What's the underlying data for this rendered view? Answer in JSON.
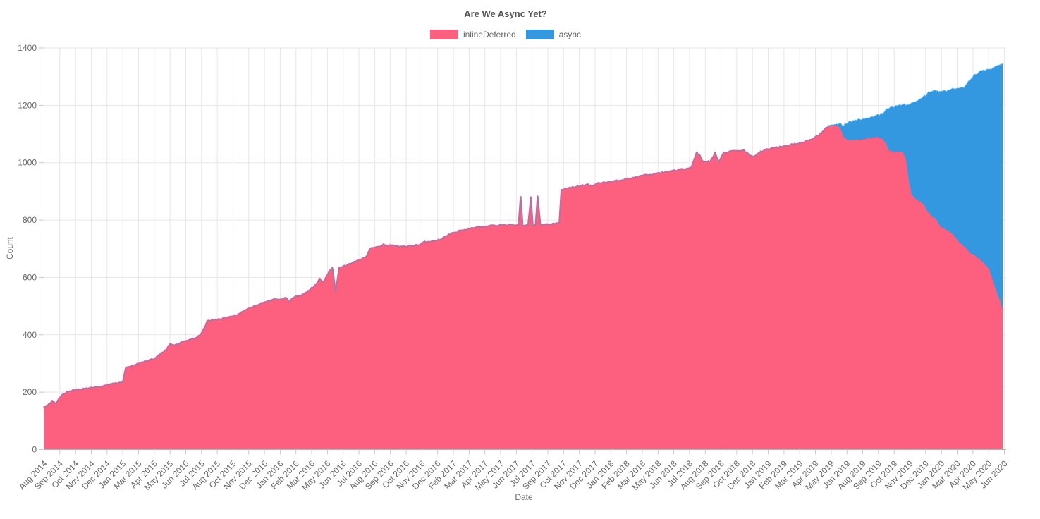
{
  "chart_data": {
    "type": "area",
    "stacked": true,
    "title": "Are We Async Yet?",
    "xlabel": "Date",
    "ylabel": "Count",
    "ylim": [
      0,
      1400
    ],
    "y_ticks": [
      0,
      200,
      400,
      600,
      800,
      1000,
      1200,
      1400
    ],
    "grid": true,
    "legend_position": "top",
    "x_unit": "months since Aug 2014 (fractional)",
    "x_range": [
      0,
      70.5
    ],
    "x_tick_labels": [
      "Aug 2014",
      "Sep 2014",
      "Oct 2014",
      "Nov 2014",
      "Dec 2014",
      "Jan 2015",
      "Mar 2015",
      "Apr 2015",
      "May 2015",
      "Jun 2015",
      "Jul 2015",
      "Aug 2015",
      "Oct 2015",
      "Nov 2015",
      "Dec 2015",
      "Jan 2016",
      "Feb 2016",
      "Mar 2016",
      "May 2016",
      "Jun 2016",
      "Jul 2016",
      "Aug 2016",
      "Sep 2016",
      "Oct 2016",
      "Nov 2016",
      "Dec 2016",
      "Feb 2017",
      "Mar 2017",
      "Apr 2017",
      "May 2017",
      "Jun 2017",
      "Jul 2017",
      "Sep 2017",
      "Oct 2017",
      "Nov 2017",
      "Dec 2017",
      "Jan 2018",
      "Feb 2018",
      "Mar 2018",
      "May 2018",
      "Jun 2018",
      "Jul 2018",
      "Aug 2018",
      "Sep 2018",
      "Oct 2018",
      "Dec 2018",
      "Jan 2019",
      "Feb 2019",
      "Mar 2019",
      "Apr 2019",
      "May 2019",
      "Jun 2019",
      "Aug 2019",
      "Sep 2019",
      "Oct 2019",
      "Nov 2019",
      "Dec 2019",
      "Jan 2020",
      "Mar 2020",
      "Apr 2020",
      "May 2020",
      "Jun 2020"
    ],
    "series": [
      {
        "name": "inlineDeferred",
        "color": "#fd5f7e",
        "points": [
          [
            0,
            148
          ],
          [
            0.4,
            158
          ],
          [
            0.65,
            170
          ],
          [
            0.9,
            160
          ],
          [
            1.2,
            185
          ],
          [
            1.5,
            196
          ],
          [
            2,
            205
          ],
          [
            2.5,
            209
          ],
          [
            3,
            212
          ],
          [
            3.5,
            215
          ],
          [
            4,
            219
          ],
          [
            4.5,
            224
          ],
          [
            5,
            228
          ],
          [
            5.4,
            232
          ],
          [
            5.8,
            236
          ],
          [
            6,
            286
          ],
          [
            6.4,
            291
          ],
          [
            7,
            300
          ],
          [
            7.4,
            306
          ],
          [
            8,
            315
          ],
          [
            8.5,
            330
          ],
          [
            8.8,
            342
          ],
          [
            9,
            350
          ],
          [
            9.3,
            368
          ],
          [
            9.55,
            362
          ],
          [
            10,
            372
          ],
          [
            10.5,
            378
          ],
          [
            11,
            386
          ],
          [
            11.5,
            398
          ],
          [
            11.8,
            425
          ],
          [
            12,
            447
          ],
          [
            12.4,
            452
          ],
          [
            13,
            456
          ],
          [
            13.5,
            460
          ],
          [
            14,
            466
          ],
          [
            14.5,
            479
          ],
          [
            15,
            492
          ],
          [
            15.5,
            500
          ],
          [
            16,
            509
          ],
          [
            16.5,
            517
          ],
          [
            17,
            523
          ],
          [
            17.85,
            528
          ],
          [
            18.05,
            515
          ],
          [
            18.3,
            529
          ],
          [
            18.7,
            534
          ],
          [
            19,
            540
          ],
          [
            19.4,
            551
          ],
          [
            19.7,
            563
          ],
          [
            20,
            575
          ],
          [
            20.3,
            595
          ],
          [
            20.55,
            584
          ],
          [
            21,
            622
          ],
          [
            21.2,
            632
          ],
          [
            21.45,
            548
          ],
          [
            21.7,
            632
          ],
          [
            22,
            638
          ],
          [
            22.5,
            646
          ],
          [
            23,
            660
          ],
          [
            23.35,
            665
          ],
          [
            23.7,
            672
          ],
          [
            24,
            700
          ],
          [
            24.5,
            707
          ],
          [
            25,
            714
          ],
          [
            25.5,
            712
          ],
          [
            26,
            709
          ],
          [
            26.5,
            707
          ],
          [
            27,
            710
          ],
          [
            27.5,
            713
          ],
          [
            28,
            723
          ],
          [
            28.5,
            727
          ],
          [
            29,
            730
          ],
          [
            29.5,
            742
          ],
          [
            30,
            754
          ],
          [
            30.5,
            761
          ],
          [
            31,
            766
          ],
          [
            31.5,
            771
          ],
          [
            32,
            776
          ],
          [
            32.5,
            779
          ],
          [
            33,
            781
          ],
          [
            33.5,
            782
          ],
          [
            34,
            783
          ],
          [
            34.9,
            784
          ],
          [
            35.05,
            880
          ],
          [
            35.2,
            782
          ],
          [
            35.6,
            783
          ],
          [
            35.8,
            878
          ],
          [
            35.95,
            782
          ],
          [
            36.15,
            783
          ],
          [
            36.3,
            882
          ],
          [
            36.5,
            782
          ],
          [
            37,
            784
          ],
          [
            37.5,
            786
          ],
          [
            37.9,
            789
          ],
          [
            38.05,
            905
          ],
          [
            38.5,
            911
          ],
          [
            39,
            915
          ],
          [
            39.5,
            919
          ],
          [
            40,
            923
          ],
          [
            40.3,
            918
          ],
          [
            40.7,
            927
          ],
          [
            41,
            929
          ],
          [
            41.5,
            932
          ],
          [
            42,
            936
          ],
          [
            42.5,
            940
          ],
          [
            43,
            944
          ],
          [
            43.5,
            949
          ],
          [
            44,
            954
          ],
          [
            44.5,
            958
          ],
          [
            45,
            962
          ],
          [
            45.5,
            966
          ],
          [
            46,
            970
          ],
          [
            46.5,
            973
          ],
          [
            47,
            977
          ],
          [
            47.6,
            982
          ],
          [
            48,
            1035
          ],
          [
            48.2,
            1028
          ],
          [
            48.45,
            1003
          ],
          [
            49,
            1004
          ],
          [
            49.35,
            1034
          ],
          [
            49.6,
            1001
          ],
          [
            49.95,
            1033
          ],
          [
            50.4,
            1039
          ],
          [
            51,
            1041
          ],
          [
            51.5,
            1043
          ],
          [
            51.9,
            1026
          ],
          [
            52.3,
            1022
          ],
          [
            52.7,
            1038
          ],
          [
            53,
            1045
          ],
          [
            53.5,
            1049
          ],
          [
            54,
            1053
          ],
          [
            54.5,
            1058
          ],
          [
            55,
            1063
          ],
          [
            55.5,
            1068
          ],
          [
            56,
            1074
          ],
          [
            56.5,
            1083
          ],
          [
            57,
            1095
          ],
          [
            57.3,
            1110
          ],
          [
            57.6,
            1124
          ],
          [
            57.9,
            1129
          ],
          [
            58.3,
            1131
          ],
          [
            58.55,
            1120
          ],
          [
            58.8,
            1090
          ],
          [
            59.1,
            1077
          ],
          [
            59.6,
            1078
          ],
          [
            60,
            1080
          ],
          [
            60.5,
            1083
          ],
          [
            61,
            1086
          ],
          [
            61.35,
            1088
          ],
          [
            61.7,
            1082
          ],
          [
            61.95,
            1068
          ],
          [
            62.15,
            1042
          ],
          [
            62.5,
            1036
          ],
          [
            62.9,
            1039
          ],
          [
            63.15,
            1036
          ],
          [
            63.4,
            1012
          ],
          [
            63.6,
            940
          ],
          [
            63.8,
            890
          ],
          [
            64,
            878
          ],
          [
            64.3,
            866
          ],
          [
            64.6,
            858
          ],
          [
            64.85,
            842
          ],
          [
            65,
            830
          ],
          [
            65.3,
            812
          ],
          [
            65.7,
            798
          ],
          [
            66,
            775
          ],
          [
            66.3,
            768
          ],
          [
            66.6,
            760
          ],
          [
            67,
            740
          ],
          [
            67.3,
            724
          ],
          [
            67.7,
            708
          ],
          [
            68,
            690
          ],
          [
            68.4,
            678
          ],
          [
            68.8,
            664
          ],
          [
            69.2,
            646
          ],
          [
            69.5,
            632
          ],
          [
            69.8,
            588
          ],
          [
            70.05,
            552
          ],
          [
            70.3,
            520
          ],
          [
            70.5,
            487
          ]
        ]
      },
      {
        "name": "async",
        "color": "#3498e0",
        "points": [
          [
            0,
            0
          ],
          [
            10,
            0
          ],
          [
            20,
            0
          ],
          [
            30,
            0
          ],
          [
            40,
            0
          ],
          [
            50,
            0
          ],
          [
            55,
            0
          ],
          [
            57,
            0
          ],
          [
            57.6,
            2
          ],
          [
            58.1,
            3
          ],
          [
            58.4,
            6
          ],
          [
            58.7,
            28
          ],
          [
            58.9,
            50
          ],
          [
            59.2,
            64
          ],
          [
            59.6,
            68
          ],
          [
            60,
            70
          ],
          [
            60.5,
            71
          ],
          [
            61,
            72
          ],
          [
            61.35,
            80
          ],
          [
            61.7,
            90
          ],
          [
            61.95,
            120
          ],
          [
            62.15,
            148
          ],
          [
            62.5,
            160
          ],
          [
            62.9,
            162
          ],
          [
            63.15,
            167
          ],
          [
            63.4,
            190
          ],
          [
            63.6,
            262
          ],
          [
            63.8,
            315
          ],
          [
            64,
            334
          ],
          [
            64.3,
            350
          ],
          [
            64.6,
            367
          ],
          [
            64.85,
            390
          ],
          [
            65,
            414
          ],
          [
            65.3,
            437
          ],
          [
            65.7,
            452
          ],
          [
            66,
            475
          ],
          [
            66.3,
            482
          ],
          [
            66.6,
            492
          ],
          [
            67,
            518
          ],
          [
            67.3,
            536
          ],
          [
            67.7,
            557
          ],
          [
            68,
            594
          ],
          [
            68.4,
            626
          ],
          [
            68.8,
            653
          ],
          [
            69.2,
            678
          ],
          [
            69.5,
            694
          ],
          [
            69.8,
            744
          ],
          [
            70.05,
            785
          ],
          [
            70.3,
            820
          ],
          [
            70.5,
            858
          ]
        ]
      }
    ]
  }
}
